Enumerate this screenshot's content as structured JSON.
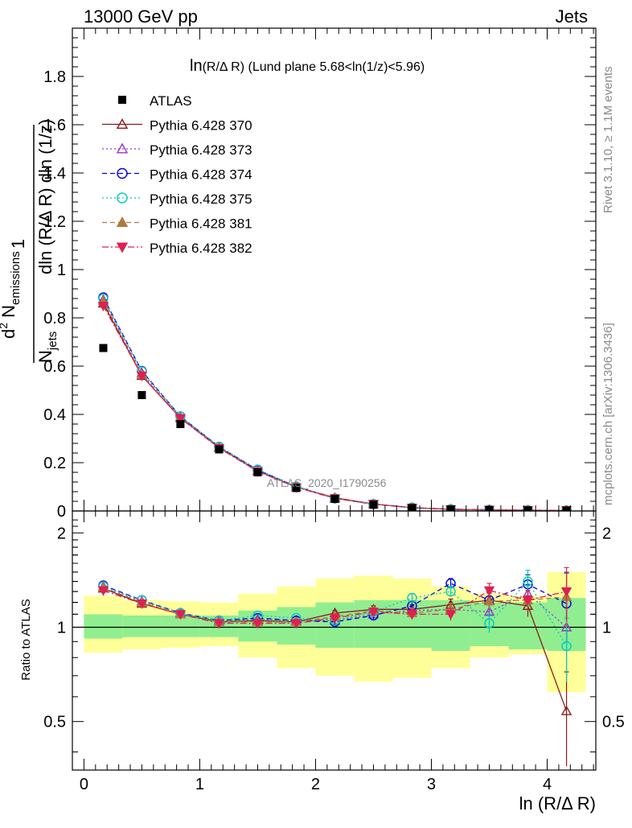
{
  "header": {
    "left": "13000 GeV pp",
    "right": "Jets"
  },
  "side_labels": {
    "rivet": "Rivet 3.1.10, ≥ 1.1M events",
    "mcplots": "mcplots.cern.ch [arXiv:1306.3436]"
  },
  "chart_data": [
    {
      "type": "scatter",
      "title_parts": {
        "main": "ln",
        "paren": "(R/Δ R)",
        "rest": " (Lund plane 5.68<ln(1/z)<5.96)"
      },
      "ylabel": "1/N_jets d²N_emissions/dln(R/ΔR) dln(1/z)",
      "ylabel_parts": {
        "one": "1",
        "n": "N",
        "jets": "jets",
        "den_rest": "dln (R/Δ R) dln (1/z)",
        "d2": "d",
        "sq": "2",
        "N": " N",
        "emissions": "emissions"
      },
      "watermark": "ATLAS_2020_I1790256",
      "xlim": [
        -0.1,
        4.42
      ],
      "ylim": [
        0,
        2.0
      ],
      "yticks": [
        "0",
        "0.2",
        "0.4",
        "0.6",
        "0.8",
        "1",
        "1.2",
        "1.4",
        "1.6",
        "1.8"
      ],
      "x": [
        0.167,
        0.5,
        0.833,
        1.167,
        1.5,
        1.833,
        2.167,
        2.5,
        2.833,
        3.167,
        3.5,
        3.833,
        4.167
      ],
      "legend_placement": "top-left",
      "series": [
        {
          "name": "ATLAS",
          "color": "#000000",
          "marker": "square-filled",
          "line": "none",
          "values": [
            0.675,
            0.48,
            0.36,
            0.255,
            0.16,
            0.095,
            0.05,
            0.026,
            0.012,
            0.006,
            0.004,
            0.0025,
            0.002
          ]
        },
        {
          "name": "Pythia 6.428 370",
          "color": "#8b1a1a",
          "marker": "triangle-up-open",
          "line": "solid",
          "values": [
            0.86,
            0.56,
            0.385,
            0.262,
            0.165,
            0.1,
            0.055,
            0.029,
            0.0135,
            0.0068,
            0.0047,
            0.0028,
            0.0011
          ]
        },
        {
          "name": "Pythia 6.428 373",
          "color": "#9932cc",
          "marker": "triangle-up-open",
          "line": "dotted",
          "values": [
            0.875,
            0.572,
            0.39,
            0.265,
            0.168,
            0.1,
            0.052,
            0.028,
            0.0136,
            0.0069,
            0.0045,
            0.0029,
            0.002
          ]
        },
        {
          "name": "Pythia 6.428 374",
          "color": "#0000dd",
          "marker": "circle-open",
          "line": "dashed",
          "values": [
            0.885,
            0.58,
            0.392,
            0.266,
            0.17,
            0.101,
            0.052,
            0.028,
            0.014,
            0.0072,
            0.0048,
            0.0033,
            0.0024
          ]
        },
        {
          "name": "Pythia 6.428 375",
          "color": "#00ccc0",
          "marker": "circle-open",
          "line": "dotted",
          "values": [
            0.88,
            0.578,
            0.392,
            0.266,
            0.172,
            0.102,
            0.052,
            0.029,
            0.014,
            0.0075,
            0.0042,
            0.0034,
            0.0017
          ]
        },
        {
          "name": "Pythia 6.428 381",
          "color": "#b07840",
          "marker": "triangle-up-filled",
          "line": "dashed",
          "values": [
            0.87,
            0.565,
            0.386,
            0.262,
            0.165,
            0.099,
            0.054,
            0.029,
            0.0132,
            0.007,
            0.0047,
            0.003,
            0.0025
          ]
        },
        {
          "name": "Pythia 6.428 382",
          "color": "#dd2050",
          "marker": "triangle-down-filled",
          "line": "dashdot",
          "values": [
            0.85,
            0.56,
            0.384,
            0.26,
            0.164,
            0.098,
            0.052,
            0.029,
            0.0132,
            0.0068,
            0.0048,
            0.0029,
            0.0026
          ]
        }
      ]
    },
    {
      "type": "scatter",
      "ylabel": "Ratio to ATLAS",
      "xlabel": "ln (R/Δ R)",
      "xlim": [
        -0.1,
        4.42
      ],
      "ylim": [
        0.35,
        2.35
      ],
      "yscale": "log",
      "yticks": [
        "0.5",
        "1",
        "2"
      ],
      "xticks": [
        "0",
        "1",
        "2",
        "3",
        "4"
      ],
      "x": [
        0.167,
        0.5,
        0.833,
        1.167,
        1.5,
        1.833,
        2.167,
        2.5,
        2.833,
        3.167,
        3.5,
        3.833,
        4.167
      ],
      "bins": [
        0.0,
        0.333,
        0.667,
        1.0,
        1.333,
        1.667,
        2.0,
        2.333,
        2.667,
        3.0,
        3.333,
        3.667,
        4.0,
        4.333
      ],
      "band_green": {
        "lo": [
          0.92,
          0.93,
          0.93,
          0.93,
          0.9,
          0.88,
          0.86,
          0.86,
          0.86,
          0.84,
          0.87,
          0.85,
          0.84
        ],
        "hi": [
          1.1,
          1.09,
          1.09,
          1.09,
          1.13,
          1.16,
          1.2,
          1.22,
          1.22,
          1.22,
          1.2,
          1.2,
          1.24
        ]
      },
      "band_yellow": {
        "lo": [
          0.83,
          0.85,
          0.86,
          0.87,
          0.8,
          0.74,
          0.7,
          0.67,
          0.69,
          0.74,
          0.8,
          0.82,
          0.62
        ],
        "hi": [
          1.26,
          1.22,
          1.21,
          1.2,
          1.28,
          1.35,
          1.43,
          1.46,
          1.43,
          1.35,
          1.28,
          1.26,
          1.5
        ]
      },
      "series": [
        {
          "name": "Pythia 6.428 370",
          "values": [
            1.33,
            1.19,
            1.1,
            1.04,
            1.05,
            1.04,
            1.11,
            1.14,
            1.14,
            1.18,
            1.22,
            1.17,
            0.54
          ],
          "err": [
            0.01,
            0.01,
            0.01,
            0.01,
            0.01,
            0.01,
            0.02,
            0.03,
            0.04,
            0.05,
            0.07,
            0.09,
            0.18
          ]
        },
        {
          "name": "Pythia 6.428 373",
          "values": [
            1.35,
            1.21,
            1.11,
            1.05,
            1.06,
            1.05,
            1.05,
            1.1,
            1.13,
            1.14,
            1.12,
            1.28,
            1.0
          ],
          "err": [
            0.01,
            0.01,
            0.01,
            0.01,
            0.01,
            0.01,
            0.02,
            0.03,
            0.04,
            0.05,
            0.07,
            0.09,
            0.3
          ]
        },
        {
          "name": "Pythia 6.428 374",
          "values": [
            1.36,
            1.22,
            1.11,
            1.05,
            1.07,
            1.05,
            1.04,
            1.09,
            1.17,
            1.38,
            1.22,
            1.37,
            1.19
          ],
          "err": [
            0.01,
            0.01,
            0.01,
            0.01,
            0.01,
            0.01,
            0.02,
            0.03,
            0.04,
            0.05,
            0.08,
            0.1,
            0.3
          ]
        },
        {
          "name": "Pythia 6.428 375",
          "values": [
            1.35,
            1.22,
            1.11,
            1.05,
            1.09,
            1.07,
            1.05,
            1.12,
            1.24,
            1.3,
            1.03,
            1.4,
            0.87
          ],
          "err": [
            0.01,
            0.01,
            0.01,
            0.01,
            0.01,
            0.01,
            0.02,
            0.03,
            0.04,
            0.05,
            0.07,
            0.12,
            0.2
          ]
        },
        {
          "name": "Pythia 6.428 381",
          "values": [
            1.34,
            1.2,
            1.1,
            1.04,
            1.04,
            1.04,
            1.08,
            1.13,
            1.11,
            1.14,
            1.21,
            1.22,
            1.25
          ],
          "err": [
            0.01,
            0.01,
            0.01,
            0.01,
            0.01,
            0.01,
            0.02,
            0.03,
            0.04,
            0.05,
            0.07,
            0.09,
            0.25
          ]
        },
        {
          "name": "Pythia 6.428 382",
          "values": [
            1.31,
            1.19,
            1.1,
            1.03,
            1.03,
            1.03,
            1.07,
            1.12,
            1.1,
            1.1,
            1.31,
            1.22,
            1.3
          ],
          "err": [
            0.01,
            0.01,
            0.01,
            0.01,
            0.01,
            0.01,
            0.02,
            0.03,
            0.04,
            0.05,
            0.07,
            0.09,
            0.25
          ]
        }
      ]
    }
  ]
}
